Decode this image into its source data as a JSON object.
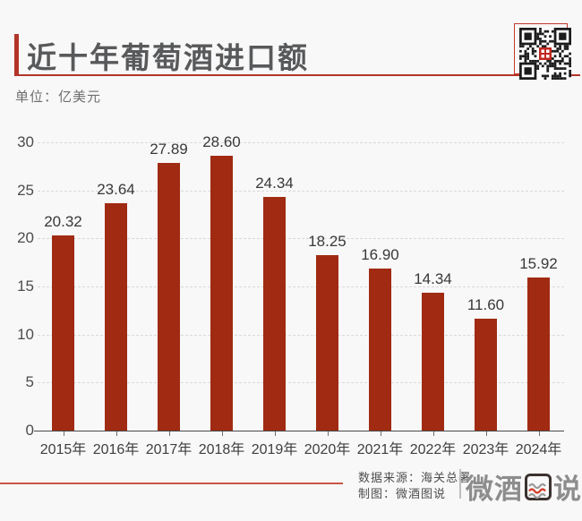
{
  "header": {
    "title": "近十年葡萄酒进口额",
    "unit_label": "单位：亿美元"
  },
  "colors": {
    "accent_red": "#b23527",
    "bar_red": "#a02b12",
    "background": "#f8f8f9",
    "title_text": "#58595a"
  },
  "chart_data": {
    "type": "bar",
    "title": "近十年葡萄酒进口额",
    "unit": "亿美元",
    "categories": [
      "2015年",
      "2016年",
      "2017年",
      "2018年",
      "2019年",
      "2020年",
      "2021年",
      "2022年",
      "2023年",
      "2024年"
    ],
    "values": [
      20.32,
      23.64,
      27.89,
      28.6,
      24.34,
      18.25,
      16.9,
      14.34,
      11.6,
      15.92
    ],
    "value_labels": [
      "20.32",
      "23.64",
      "27.89",
      "28.60",
      "24.34",
      "18.25",
      "16.90",
      "14.34",
      "11.60",
      "15.92"
    ],
    "xlabel": "",
    "ylabel": "亿美元",
    "ylim": [
      0,
      30
    ],
    "yticks": [
      0,
      5,
      10,
      15,
      20,
      25,
      30
    ],
    "grid": "horizontal-dashed",
    "legend": "none",
    "bar_color": "#a02b12"
  },
  "footer": {
    "source": "数据来源：海关总署",
    "credit": "制图：微酒图说",
    "logo": {
      "prefix": "微酒",
      "boxed_char": "图",
      "suffix": "说"
    }
  }
}
